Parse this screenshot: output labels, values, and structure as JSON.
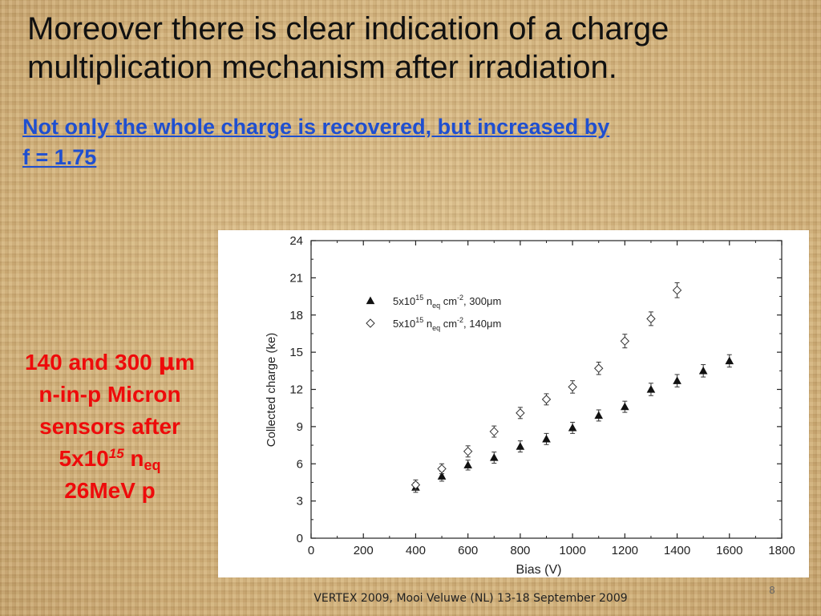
{
  "slide": {
    "title_lines": [
      "Moreover there is clear indication of a charge",
      "multiplication mechanism after irradiation."
    ],
    "subtitle_lines": [
      "Not only the whole charge is recovered, but increased by",
      "f = 1.75"
    ],
    "side_note": {
      "line1_prefix": "140 and 300 ",
      "line1_mu": "μ",
      "line1_suffix": "m",
      "line2": "n-in-p Micron",
      "line3": "sensors after",
      "line4_base": "5x10",
      "line4_exp": "15",
      "line4_n": " n",
      "line4_sub": "eq",
      "line5": "26MeV p"
    },
    "page_number": "8",
    "footer": "VERTEX 2009, Mooi Veluwe (NL) 13-18 September 2009"
  },
  "colors": {
    "background": "#d4b583",
    "title": "#111111",
    "subtitle": "#1f4fd0",
    "side_note": "#ee0b0b"
  },
  "chart_data": {
    "type": "scatter",
    "xlabel": "Bias (V)",
    "ylabel": "Collected charge (ke)",
    "xlim": [
      0,
      1800
    ],
    "ylim": [
      0,
      24
    ],
    "x_ticks": [
      "0",
      "200",
      "400",
      "600",
      "800",
      "1000",
      "1200",
      "1400",
      "1600",
      "1800"
    ],
    "y_ticks": [
      "0",
      "3",
      "6",
      "9",
      "12",
      "15",
      "18",
      "21",
      "24"
    ],
    "grid": false,
    "legend_position": "top-left",
    "series": [
      {
        "legend_base": "5x10",
        "legend_exp": "15",
        "legend_n": " n",
        "legend_sub": "eq",
        "legend_unit": " cm",
        "legend_unit_exp": "-2",
        "legend_suffix": ", 300μm",
        "marker": "filled-triangle",
        "x": [
          400,
          500,
          600,
          700,
          800,
          900,
          1000,
          1100,
          1200,
          1300,
          1400,
          1500,
          1600
        ],
        "y": [
          4.1,
          5.0,
          5.9,
          6.5,
          7.4,
          8.0,
          8.9,
          9.9,
          10.6,
          12.0,
          12.7,
          13.5,
          14.3
        ],
        "err": [
          0.4,
          0.4,
          0.4,
          0.45,
          0.45,
          0.45,
          0.45,
          0.45,
          0.45,
          0.5,
          0.5,
          0.5,
          0.5
        ]
      },
      {
        "legend_base": "5x10",
        "legend_exp": "15",
        "legend_n": " n",
        "legend_sub": "eq",
        "legend_unit": " cm",
        "legend_unit_exp": "-2",
        "legend_suffix": ", 140μm",
        "marker": "open-diamond",
        "x": [
          400,
          500,
          600,
          700,
          800,
          900,
          1000,
          1100,
          1200,
          1300,
          1400
        ],
        "y": [
          4.3,
          5.6,
          7.0,
          8.6,
          10.1,
          11.2,
          12.2,
          13.7,
          15.9,
          17.7,
          20.0
        ],
        "err": [
          0.4,
          0.4,
          0.45,
          0.45,
          0.45,
          0.45,
          0.5,
          0.5,
          0.55,
          0.55,
          0.6
        ]
      }
    ]
  }
}
